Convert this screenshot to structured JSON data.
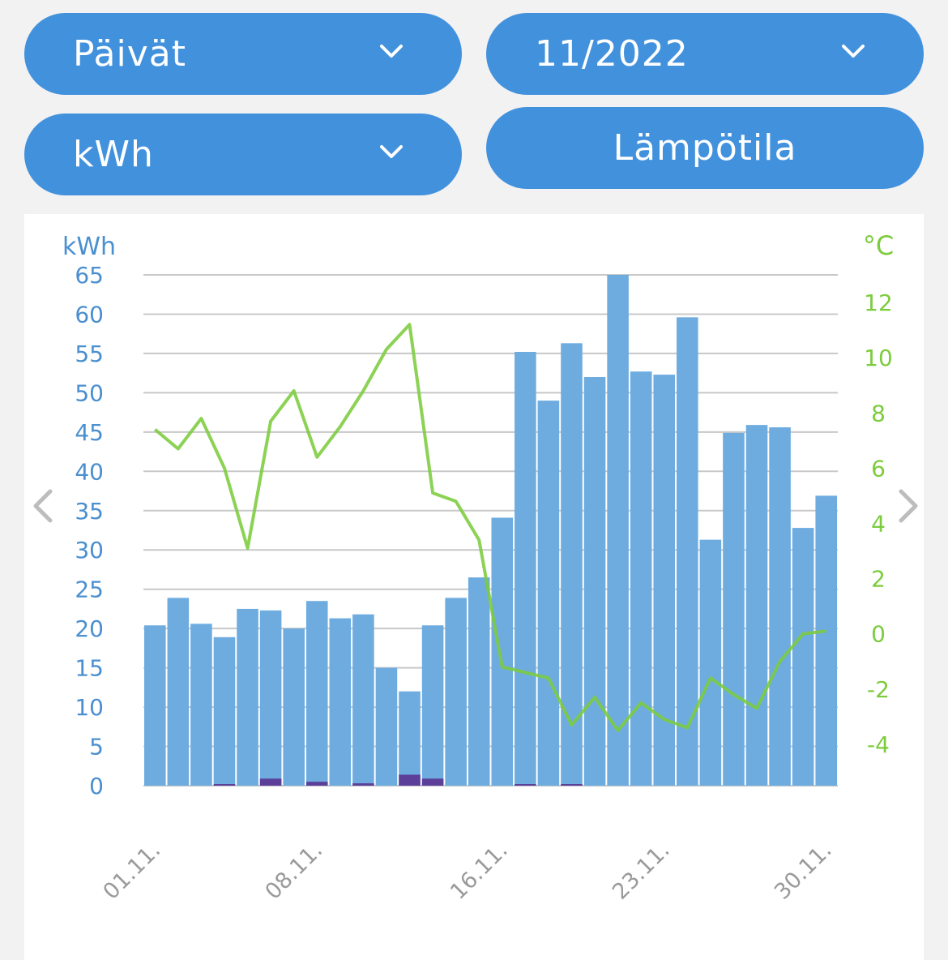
{
  "controls": {
    "period": "Päivät",
    "month": "11/2022",
    "unit": "kWh",
    "temperature_button": "Lämpötila"
  },
  "icons": {
    "dropdown": "chevron-down-icon",
    "prev": "chevron-left-icon",
    "next": "chevron-right-icon"
  },
  "colors": {
    "button": "#4291dd",
    "bar": "#6eace0",
    "bar_secondary": "#5b3f99",
    "temperature_line": "#7ccc3d",
    "left_axis_text": "#4a8fd0",
    "right_axis_text": "#7ccc3d",
    "grid": "#c8c8c8"
  },
  "chart_data": {
    "type": "bar",
    "xlabel": "",
    "ylabel": "kWh",
    "y2label": "°C",
    "ylim": [
      0,
      65
    ],
    "y2lim": [
      -5.5,
      13
    ],
    "yticks": [
      0,
      5,
      10,
      15,
      20,
      25,
      30,
      35,
      40,
      45,
      50,
      55,
      60,
      65
    ],
    "y2ticks": [
      -4,
      -2,
      0,
      2,
      4,
      6,
      8,
      10,
      12
    ],
    "xtick_labels": [
      "01.11.",
      "08.11.",
      "16.11.",
      "23.11.",
      "30.11."
    ],
    "xtick_days": [
      1,
      8,
      16,
      23,
      30
    ],
    "grid": true,
    "categories": [
      "1",
      "2",
      "3",
      "4",
      "5",
      "6",
      "7",
      "8",
      "9",
      "10",
      "11",
      "12",
      "13",
      "14",
      "15",
      "16",
      "17",
      "18",
      "19",
      "20",
      "21",
      "22",
      "23",
      "24",
      "25",
      "26",
      "27",
      "28",
      "29",
      "30"
    ],
    "series": [
      {
        "type": "bar",
        "axis": "left",
        "values": [
          20.4,
          23.9,
          20.6,
          18.9,
          22.5,
          22.3,
          20.0,
          23.5,
          21.3,
          21.8,
          15.0,
          12.0,
          20.4,
          23.9,
          26.5,
          34.1,
          55.2,
          49.0,
          56.3,
          52.0,
          65.0,
          52.7,
          52.3,
          59.6,
          31.3,
          44.9,
          45.9,
          45.6,
          32.8,
          36.9
        ]
      },
      {
        "type": "bar",
        "axis": "left",
        "values": [
          0,
          0,
          0,
          0.2,
          0,
          0.9,
          0,
          0.5,
          0,
          0.3,
          0,
          1.4,
          0.9,
          0,
          0,
          0,
          0.1,
          0,
          0.1,
          0,
          0,
          0,
          0,
          0,
          0,
          0,
          0,
          0,
          0,
          0
        ]
      },
      {
        "type": "line",
        "axis": "right",
        "values": [
          7.4,
          6.7,
          7.8,
          6.0,
          3.1,
          7.7,
          8.8,
          6.4,
          7.5,
          8.8,
          10.3,
          11.2,
          5.1,
          4.8,
          3.4,
          -1.2,
          -1.4,
          -1.6,
          -3.3,
          -2.3,
          -3.5,
          -2.5,
          -3.1,
          -3.4,
          -1.6,
          -2.2,
          -2.7,
          -1.0,
          0.0,
          0.1
        ]
      }
    ]
  }
}
